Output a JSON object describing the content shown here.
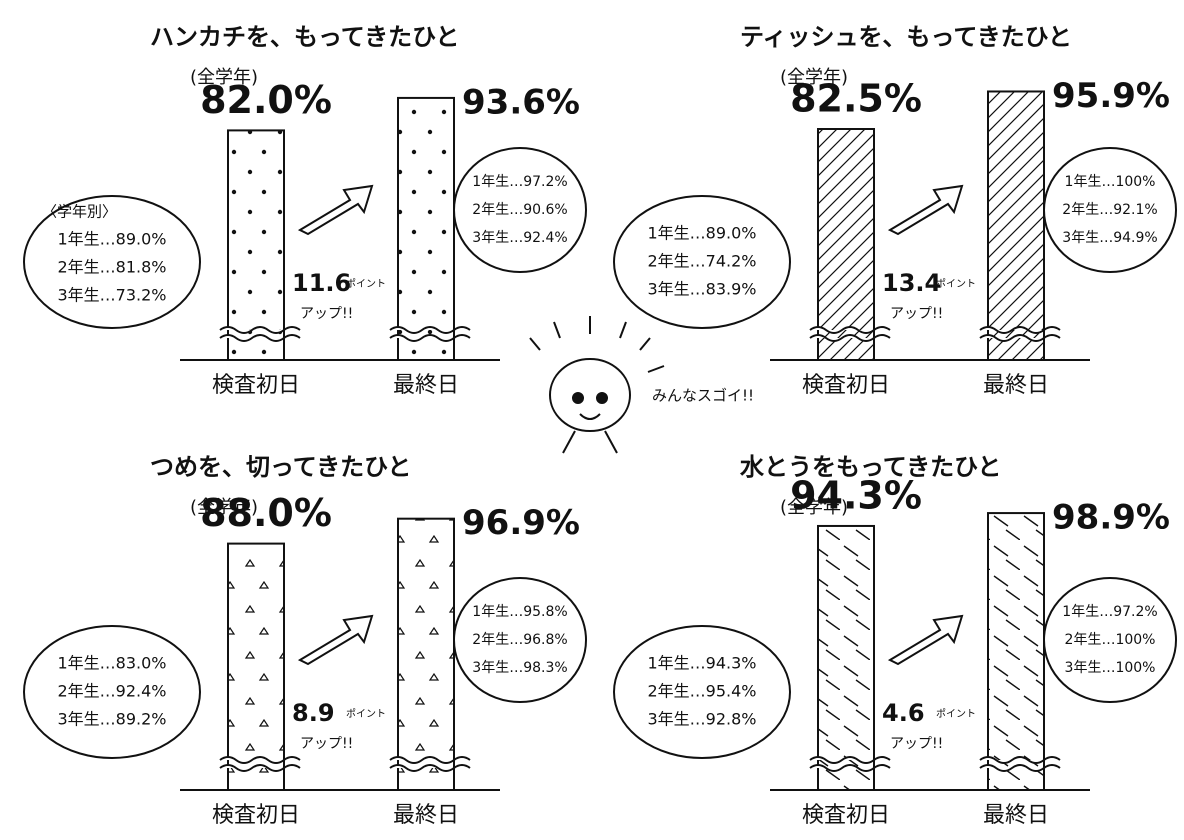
{
  "chart_data": [
    {
      "type": "bar",
      "title": "ハンカチを、もってきたひと",
      "subtitle": "(全学年)",
      "categories": [
        "検査初日",
        "最終日"
      ],
      "values": [
        82.0,
        93.6
      ],
      "value_labels": [
        "82.0%",
        "93.6%"
      ],
      "pattern": "dots",
      "increase": 11.6,
      "increase_unit": "ポイント",
      "increase_note": "アップ!!",
      "first_day_heading": "〈学年別〉",
      "first_day_grades": [
        "1年生…89.0%",
        "2年生…81.8%",
        "3年生…73.2%"
      ],
      "last_day_grades": [
        "1年生…97.2%",
        "2年生…90.6%",
        "3年生…92.4%"
      ]
    },
    {
      "type": "bar",
      "title": "ティッシュを、もってきたひと",
      "subtitle": "(全学年)",
      "categories": [
        "検査初日",
        "最終日"
      ],
      "values": [
        82.5,
        95.9
      ],
      "value_labels": [
        "82.5%",
        "95.9%"
      ],
      "pattern": "hatch",
      "increase": 13.4,
      "increase_unit": "ポイント",
      "increase_note": "アップ!!",
      "first_day_grades": [
        "1年生…89.0%",
        "2年生…74.2%",
        "3年生…83.9%"
      ],
      "last_day_grades": [
        "1年生…100%",
        "2年生…92.1%",
        "3年生…94.9%"
      ]
    },
    {
      "type": "bar",
      "title": "つめを、切ってきたひと",
      "subtitle": "(全学年)",
      "categories": [
        "検査初日",
        "最終日"
      ],
      "values": [
        88.0,
        96.9
      ],
      "value_labels": [
        "88.0%",
        "96.9%"
      ],
      "pattern": "tri",
      "increase": 8.9,
      "increase_unit": "ポイント",
      "increase_note": "アップ!!",
      "first_day_grades": [
        "1年生…83.0%",
        "2年生…92.4%",
        "3年生…89.2%"
      ],
      "last_day_grades": [
        "1年生…95.8%",
        "2年生…96.8%",
        "3年生…98.3%"
      ]
    },
    {
      "type": "bar",
      "title": "水とうをもってきたひと",
      "subtitle": "(全学年)",
      "categories": [
        "検査初日",
        "最終日"
      ],
      "values": [
        94.3,
        98.9
      ],
      "value_labels": [
        "94.3%",
        "98.9%"
      ],
      "pattern": "dash",
      "increase": 4.6,
      "increase_unit": "ポイント",
      "increase_note": "アップ!!",
      "first_day_grades": [
        "1年生…94.3%",
        "2年生…95.4%",
        "3年生…92.8%"
      ],
      "last_day_grades": [
        "1年生…97.2%",
        "2年生…100%",
        "3年生…100%"
      ]
    }
  ],
  "center_note": "みんなスゴイ!!"
}
